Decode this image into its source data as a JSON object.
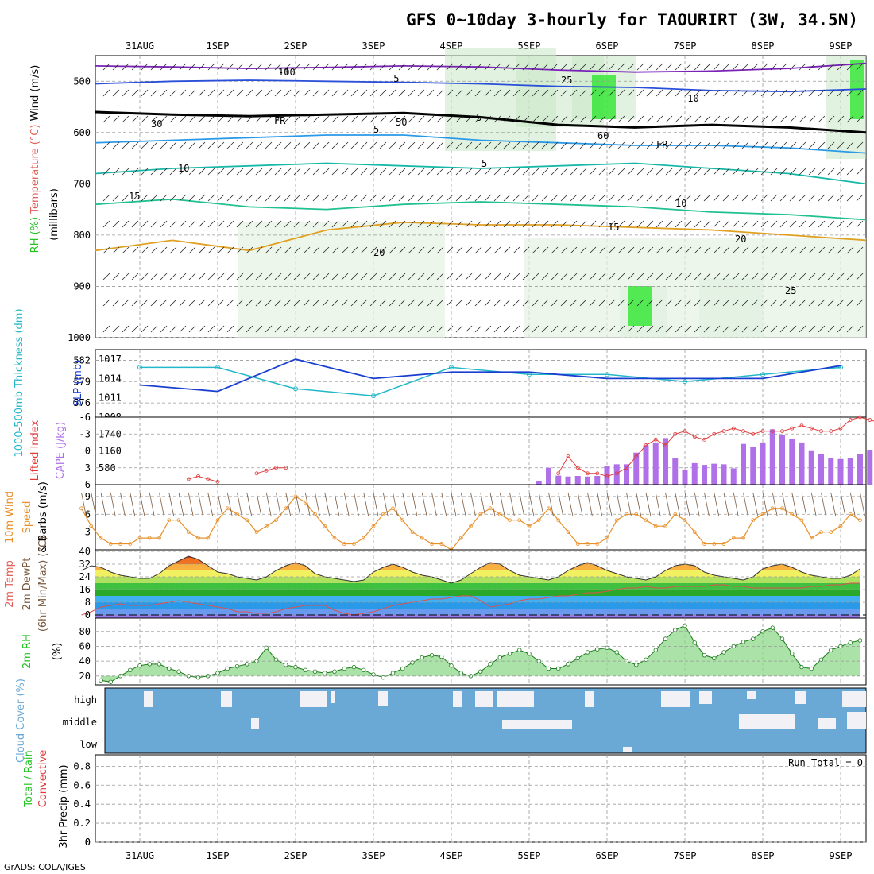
{
  "title": "GFS 0~10day 3-hourly for TAOURIRT (3W, 34.5N)",
  "credit": "GrADS: COLA/IGES",
  "run_total": "Run Total = 0",
  "dates": [
    "31AUG",
    "1SEP",
    "2SEP",
    "3SEP",
    "4SEP",
    "5SEP",
    "6SEP",
    "7SEP",
    "8SEP",
    "9SEP"
  ],
  "colors": {
    "grid": "#9a9a9a",
    "rh_green": "#22c322",
    "temp_label": "#e0605a",
    "thickness": "#22b8c8",
    "slp": "#1a3fd0",
    "cape": "#b070e8",
    "lifted": "#e03a3a",
    "wind": "#e8902a",
    "cloud": "#6aa8d6",
    "dewpt": "#7a5a40"
  },
  "chart_data": [
    {
      "type": "contour",
      "panel": "upper-air",
      "ylabel_parts": [
        "RH (%)",
        "Temperature (°C)",
        "Wind (m/s)"
      ],
      "yunit": "(millibars)",
      "y_ticks": [
        500,
        600,
        700,
        800,
        900,
        1000
      ],
      "contour_labels": [
        "-10",
        "-5",
        "FR",
        "5",
        "10",
        "15",
        "20",
        "25",
        "-10",
        "-5",
        "FR",
        "5",
        "10",
        "15",
        "20",
        "25",
        "30",
        "60",
        "50",
        "10"
      ],
      "isotherms": [
        {
          "label": "-10",
          "pressure": [
            470,
            472,
            475,
            473,
            470,
            472,
            478,
            482,
            480,
            475,
            465
          ]
        },
        {
          "label": "-5",
          "pressure": [
            505,
            500,
            498,
            500,
            502,
            505,
            510,
            512,
            518,
            520,
            515
          ]
        },
        {
          "label": "FR",
          "pressure": [
            560,
            565,
            568,
            565,
            562,
            570,
            585,
            590,
            585,
            590,
            600
          ]
        },
        {
          "label": "5",
          "pressure": [
            620,
            615,
            610,
            605,
            605,
            615,
            620,
            625,
            625,
            630,
            640
          ]
        },
        {
          "label": "10",
          "pressure": [
            680,
            670,
            665,
            660,
            665,
            670,
            665,
            660,
            670,
            680,
            700
          ]
        },
        {
          "label": "15",
          "pressure": [
            740,
            730,
            745,
            750,
            740,
            735,
            740,
            745,
            755,
            760,
            770
          ]
        },
        {
          "label": "20",
          "pressure": [
            830,
            810,
            830,
            790,
            775,
            780,
            780,
            785,
            790,
            800,
            810
          ]
        }
      ]
    },
    {
      "type": "line",
      "panel": "thickness-slp",
      "ylabel": "1000-500mb Thickness (dm)",
      "ylabel2": "SLP (mb)",
      "left_ticks": [
        576,
        579,
        582
      ],
      "right_ticks": [
        1008,
        1011,
        1014,
        1017
      ],
      "x": [
        "31AUG",
        "1SEP",
        "2SEP",
        "3SEP",
        "4SEP",
        "5SEP",
        "6SEP",
        "7SEP",
        "8SEP",
        "9SEP"
      ],
      "series": [
        {
          "name": "1000-500mb Thickness",
          "values": [
            581,
            581,
            578,
            577,
            581,
            580,
            580,
            579,
            580,
            581
          ]
        },
        {
          "name": "SLP",
          "values": [
            1013,
            1012,
            1017,
            1014,
            1015,
            1015,
            1014,
            1014,
            1014,
            1016
          ]
        }
      ]
    },
    {
      "type": "bar+line",
      "panel": "cape-li",
      "ylabel": "Lifted Index",
      "ylabel2": "CAPE (J/kg)",
      "left_ticks": [
        -6,
        -3,
        0,
        3,
        6
      ],
      "right_ticks": [
        580,
        1160,
        1740
      ],
      "cape_values": [
        0,
        0,
        0,
        0,
        0,
        0,
        0,
        0,
        0,
        0,
        0,
        0,
        0,
        0,
        0,
        0,
        0,
        0,
        0,
        0,
        0,
        0,
        0,
        0,
        0,
        0,
        0,
        0,
        0,
        0,
        0,
        0,
        0,
        0,
        0,
        0,
        0,
        0,
        0,
        0,
        0,
        0,
        0,
        0,
        0,
        0,
        0,
        120,
        580,
        310,
        280,
        300,
        280,
        300,
        650,
        700,
        700,
        1100,
        1350,
        1450,
        1600,
        900,
        500,
        740,
        680,
        720,
        700,
        560,
        1400,
        1300,
        1450,
        1900,
        1700,
        1560,
        1450,
        1180,
        1050,
        900,
        880,
        900,
        1050,
        1200,
        950,
        1620,
        1550,
        900,
        560,
        300,
        100
      ],
      "lifted_index": [
        null,
        null,
        null,
        null,
        null,
        null,
        null,
        null,
        null,
        null,
        null,
        5,
        4.5,
        5,
        5.5,
        null,
        null,
        null,
        4,
        3.5,
        3,
        3,
        null,
        null,
        null,
        null,
        null,
        null,
        null,
        null,
        null,
        null,
        null,
        null,
        null,
        null,
        null,
        null,
        null,
        null,
        null,
        null,
        null,
        null,
        null,
        null,
        null,
        null,
        null,
        4,
        1,
        3,
        4,
        4,
        4.5,
        4,
        3,
        1,
        -1,
        -2,
        -1,
        -3,
        -3.5,
        -2.5,
        -2,
        -3,
        -3.5,
        -4,
        -3.5,
        -3,
        -3.5,
        -3.5,
        -3.5,
        -4,
        -4.5,
        -4,
        -3.5,
        -3.5,
        -4,
        -5.5,
        -6,
        -5.5,
        -5,
        -4.5,
        -4,
        -3.5,
        -4,
        -5,
        -4.5,
        -5,
        -6,
        -5.5,
        -5,
        -4.5,
        -4,
        -3,
        -2.5,
        -1
      ]
    },
    {
      "type": "line",
      "panel": "wind",
      "ylabel": "10m Wind Speed & Barbs (m/s)",
      "y_ticks": [
        3,
        6,
        9
      ],
      "values": [
        7,
        4,
        2,
        1,
        1,
        1,
        2,
        2,
        2,
        5,
        5,
        3,
        2,
        2,
        5,
        7,
        6,
        5,
        3,
        4,
        5,
        7,
        9,
        8,
        6,
        4,
        2,
        1,
        1,
        2,
        4,
        6,
        7,
        5,
        3,
        2,
        1,
        1,
        0,
        2,
        4,
        6,
        7,
        6,
        5,
        5,
        4,
        5,
        7,
        5,
        3,
        1,
        1,
        1,
        2,
        5,
        6,
        6,
        5,
        4,
        4,
        6,
        5,
        3,
        1,
        1,
        1,
        2,
        2,
        5,
        6,
        7,
        7,
        6,
        5,
        2,
        3,
        3,
        4,
        6,
        5,
        3,
        1,
        1,
        2,
        4,
        6,
        7,
        7,
        6,
        5,
        3,
        1,
        1,
        2,
        2,
        3
      ]
    },
    {
      "type": "area",
      "panel": "temperature",
      "ylabel": "2m Temp 2m DewPt (6hr Min/Max) (°C)",
      "y_ticks": [
        0,
        8,
        16,
        24,
        32,
        40
      ],
      "temp": [
        28,
        31,
        30,
        27,
        25,
        24,
        23,
        23,
        26,
        31,
        34,
        37,
        35,
        31,
        27,
        26,
        24,
        23,
        22,
        24,
        28,
        31,
        33,
        31,
        26,
        24,
        23,
        22,
        21,
        22,
        27,
        30,
        32,
        30,
        27,
        25,
        24,
        22,
        20,
        22,
        26,
        30,
        33,
        32,
        28,
        25,
        24,
        23,
        22,
        24,
        28,
        31,
        33,
        31,
        28,
        26,
        24,
        23,
        22,
        24,
        28,
        31,
        32,
        31,
        27,
        25,
        24,
        23,
        22,
        24,
        29,
        31,
        32,
        30,
        27,
        25,
        24,
        23,
        23,
        25,
        29,
        32,
        33,
        30,
        27,
        25,
        24,
        23,
        23,
        25,
        30,
        33,
        34,
        31,
        28,
        26,
        25,
        26,
        26
      ],
      "dewpt": [
        0,
        2,
        5,
        6,
        7,
        6,
        6,
        6,
        7,
        8,
        9,
        8,
        7,
        6,
        5,
        4,
        2,
        2,
        1,
        1,
        2,
        4,
        5,
        6,
        6,
        6,
        3,
        1,
        0,
        1,
        2,
        4,
        6,
        7,
        8,
        9,
        10,
        10,
        11,
        12,
        12,
        9,
        5,
        6,
        7,
        9,
        10,
        10,
        11,
        12,
        12,
        13,
        14,
        14,
        15,
        16,
        17,
        17,
        18,
        17,
        17,
        18,
        18,
        18,
        18,
        19,
        19,
        18,
        18,
        17,
        17,
        17,
        17,
        17,
        17,
        18,
        18,
        19,
        19,
        20,
        20,
        20,
        21,
        18,
        16,
        17,
        18,
        20,
        20,
        19,
        19,
        18,
        18,
        17,
        17,
        17,
        17,
        17,
        17
      ]
    },
    {
      "type": "area",
      "panel": "rh",
      "ylabel": "2m RH (%)",
      "y_ticks": [
        20,
        40,
        60,
        80
      ],
      "values": [
        14,
        12,
        20,
        28,
        34,
        36,
        36,
        30,
        26,
        20,
        18,
        20,
        24,
        30,
        33,
        36,
        40,
        58,
        42,
        35,
        32,
        28,
        26,
        24,
        26,
        30,
        32,
        28,
        22,
        18,
        24,
        30,
        38,
        45,
        48,
        46,
        34,
        24,
        20,
        26,
        36,
        45,
        50,
        55,
        50,
        40,
        30,
        30,
        36,
        44,
        52,
        56,
        58,
        52,
        40,
        35,
        42,
        55,
        70,
        82,
        88,
        65,
        48,
        44,
        52,
        60,
        66,
        70,
        80,
        85,
        70,
        50,
        32,
        30,
        42,
        55,
        60,
        65,
        68,
        70,
        55,
        40,
        32,
        36,
        46,
        55,
        60,
        62,
        58,
        50
      ]
    },
    {
      "type": "heatmap",
      "panel": "cloud",
      "ylabel": "Cloud Cover (%)",
      "levels": [
        "high",
        "middle",
        "low"
      ]
    },
    {
      "type": "line",
      "panel": "precip",
      "ylabel": "3hr Precip (mm)",
      "ylabel_legend": [
        "Total / Rain",
        "Convective"
      ],
      "y_ticks": [
        "0",
        "0.2",
        "0.4",
        "0.6",
        "0.8"
      ],
      "values": [
        0,
        0,
        0,
        0,
        0,
        0,
        0,
        0,
        0,
        0
      ]
    }
  ]
}
